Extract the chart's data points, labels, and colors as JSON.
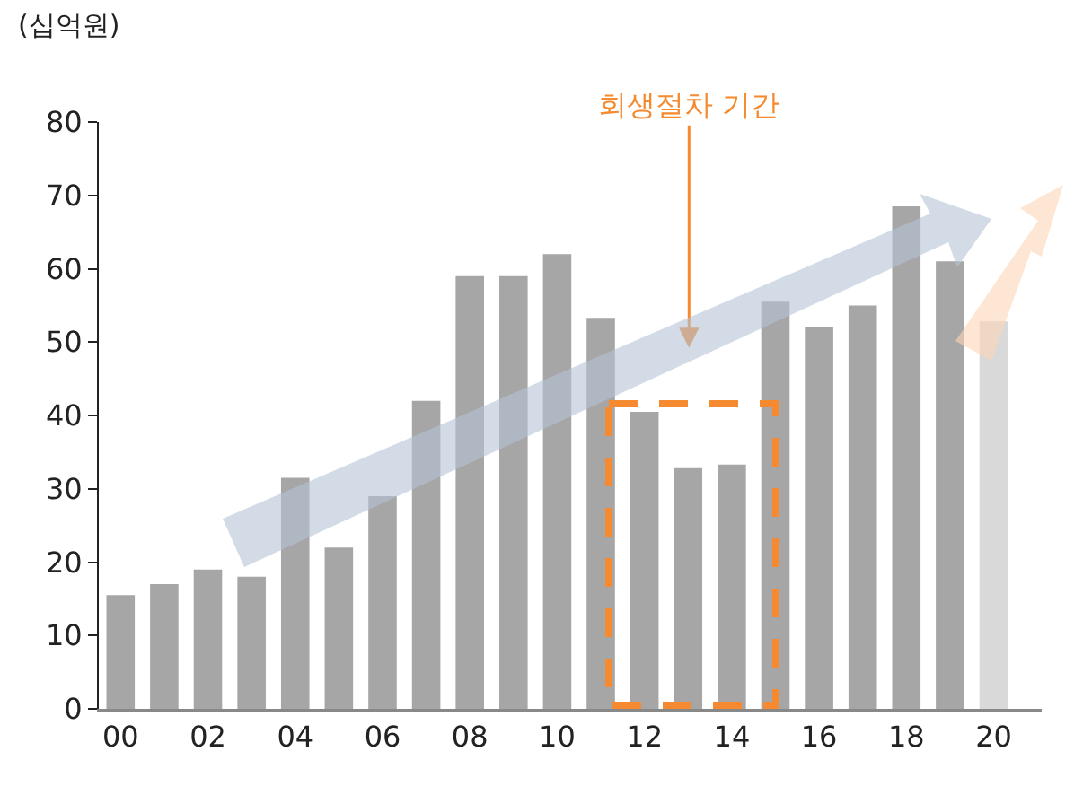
{
  "chart_data": {
    "type": "bar",
    "ylabel": "(십억원)",
    "categories": [
      "00",
      null,
      "02",
      null,
      "04",
      null,
      "06",
      null,
      "08",
      null,
      "10",
      null,
      "12",
      null,
      "14",
      null,
      "16",
      null,
      "18",
      null,
      "20"
    ],
    "values": [
      15.5,
      17,
      19,
      18,
      31.5,
      22,
      29,
      42,
      59,
      59,
      62,
      53.3,
      40.5,
      32.8,
      33.3,
      55.5,
      52,
      55,
      68.5,
      61,
      52.8
    ],
    "colors": [
      "#a6a6a6",
      "#a6a6a6",
      "#a6a6a6",
      "#a6a6a6",
      "#a6a6a6",
      "#a6a6a6",
      "#a6a6a6",
      "#a6a6a6",
      "#a6a6a6",
      "#a6a6a6",
      "#a6a6a6",
      "#a6a6a6",
      "#a6a6a6",
      "#a6a6a6",
      "#a6a6a6",
      "#a6a6a6",
      "#a6a6a6",
      "#a6a6a6",
      "#a6a6a6",
      "#a6a6a6",
      "#d9d9d9"
    ],
    "ylim": [
      0,
      80
    ],
    "yticks": [
      0,
      10,
      20,
      30,
      40,
      50,
      60,
      70,
      80
    ],
    "grid": false,
    "annotations": [
      "회생절차 기간"
    ]
  }
}
